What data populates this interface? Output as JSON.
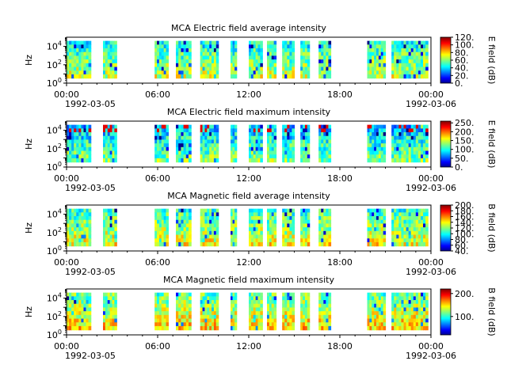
{
  "figure": {
    "x_ticks": [
      "00:00",
      "06:00",
      "12:00",
      "18:00",
      "00:00"
    ],
    "x_tick_hours": [
      0,
      6,
      12,
      18,
      24
    ],
    "date_labels": [
      "1992-03-05",
      "1992-03-06"
    ]
  },
  "panels": [
    {
      "title": "MCA  Electric field average intensity",
      "ylabel": "Hz",
      "cbar_label": "E field (dB)",
      "cbar_ticks": [
        "0.",
        "20.",
        "40.",
        "60.",
        "80.",
        "100.",
        "120."
      ]
    },
    {
      "title": "MCA  Electric field maximum intensity",
      "ylabel": "Hz",
      "cbar_label": "E field (dB)",
      "cbar_ticks": [
        "0.",
        "50.",
        "100.",
        "150.",
        "200.",
        "250."
      ]
    },
    {
      "title": "MCA  Magnetic field average intensity",
      "ylabel": "Hz",
      "cbar_label": "B field (dB)",
      "cbar_ticks": [
        "40.",
        "60.",
        "80.",
        "100.",
        "120.",
        "140.",
        "160.",
        "180.",
        "200."
      ]
    },
    {
      "title": "MCA  Magnetic field maximum intensity",
      "ylabel": "Hz",
      "cbar_label": "B field (dB)",
      "cbar_ticks": [
        "100.",
        "200."
      ]
    }
  ],
  "chart_data": [
    {
      "type": "heatmap",
      "title": "MCA  Electric field average intensity",
      "ylabel": "Hz",
      "yscale": "log",
      "ylim": [
        1,
        100000
      ],
      "y_ticks": [
        1,
        100,
        10000
      ],
      "xlim": [
        "1992-03-05 00:00",
        "1992-03-06 00:00"
      ],
      "colorbar": {
        "label": "E field (dB)",
        "range": [
          0,
          120
        ],
        "ticks": [
          0,
          20,
          40,
          60,
          80,
          100,
          120
        ],
        "colormap": "jet"
      },
      "data_intervals_hours": [
        [
          0.0,
          1.6
        ],
        [
          2.4,
          3.3
        ],
        [
          5.8,
          6.7
        ],
        [
          7.2,
          8.2
        ],
        [
          8.8,
          10.0
        ],
        [
          10.8,
          11.2
        ],
        [
          12.0,
          12.9
        ],
        [
          13.2,
          13.8
        ],
        [
          14.2,
          15.0
        ],
        [
          15.4,
          16.0
        ],
        [
          16.6,
          17.4
        ],
        [
          19.8,
          21.0
        ],
        [
          21.4,
          23.8
        ]
      ],
      "typical_level_db": 55
    },
    {
      "type": "heatmap",
      "title": "MCA  Electric field maximum intensity",
      "ylabel": "Hz",
      "yscale": "log",
      "ylim": [
        1,
        100000
      ],
      "y_ticks": [
        1,
        100,
        10000
      ],
      "xlim": [
        "1992-03-05 00:00",
        "1992-03-06 00:00"
      ],
      "colorbar": {
        "label": "E field (dB)",
        "range": [
          0,
          260
        ],
        "ticks": [
          0,
          50,
          100,
          150,
          200,
          250
        ],
        "colormap": "jet"
      },
      "data_intervals_hours": [
        [
          0.0,
          1.6
        ],
        [
          2.4,
          3.3
        ],
        [
          5.8,
          6.7
        ],
        [
          7.2,
          8.2
        ],
        [
          8.8,
          10.0
        ],
        [
          10.8,
          11.2
        ],
        [
          12.0,
          12.9
        ],
        [
          13.2,
          13.8
        ],
        [
          14.2,
          15.0
        ],
        [
          15.4,
          16.0
        ],
        [
          16.6,
          17.4
        ],
        [
          19.8,
          21.0
        ],
        [
          21.4,
          23.8
        ]
      ],
      "typical_level_db": 100
    },
    {
      "type": "heatmap",
      "title": "MCA  Magnetic field average intensity",
      "ylabel": "Hz",
      "yscale": "log",
      "ylim": [
        1,
        100000
      ],
      "y_ticks": [
        1,
        100,
        10000
      ],
      "xlim": [
        "1992-03-05 00:00",
        "1992-03-06 00:00"
      ],
      "colorbar": {
        "label": "B field (dB)",
        "range": [
          40,
          200
        ],
        "ticks": [
          40,
          60,
          80,
          100,
          120,
          140,
          160,
          180,
          200
        ],
        "colormap": "jet"
      },
      "data_intervals_hours": [
        [
          0.0,
          1.6
        ],
        [
          2.4,
          3.3
        ],
        [
          5.8,
          6.7
        ],
        [
          7.2,
          8.2
        ],
        [
          8.8,
          10.0
        ],
        [
          10.8,
          11.2
        ],
        [
          12.0,
          12.9
        ],
        [
          13.2,
          13.8
        ],
        [
          14.2,
          15.0
        ],
        [
          15.4,
          16.0
        ],
        [
          16.6,
          17.4
        ],
        [
          19.8,
          21.0
        ],
        [
          21.4,
          23.8
        ]
      ],
      "typical_level_db": 120
    },
    {
      "type": "heatmap",
      "title": "MCA  Magnetic field maximum intensity",
      "ylabel": "Hz",
      "yscale": "log",
      "ylim": [
        1,
        100000
      ],
      "y_ticks": [
        1,
        100,
        10000
      ],
      "xlim": [
        "1992-03-05 00:00",
        "1992-03-06 00:00"
      ],
      "colorbar": {
        "label": "B field (dB)",
        "range": [
          20,
          220
        ],
        "ticks": [
          100,
          200
        ],
        "colormap": "jet"
      },
      "data_intervals_hours": [
        [
          0.0,
          1.6
        ],
        [
          2.4,
          3.3
        ],
        [
          5.8,
          6.7
        ],
        [
          7.2,
          8.2
        ],
        [
          8.8,
          10.0
        ],
        [
          10.8,
          11.2
        ],
        [
          12.0,
          12.9
        ],
        [
          13.2,
          13.8
        ],
        [
          14.2,
          15.0
        ],
        [
          15.4,
          16.0
        ],
        [
          16.6,
          17.4
        ],
        [
          19.8,
          21.0
        ],
        [
          21.4,
          23.8
        ]
      ],
      "typical_level_db": 130
    }
  ]
}
